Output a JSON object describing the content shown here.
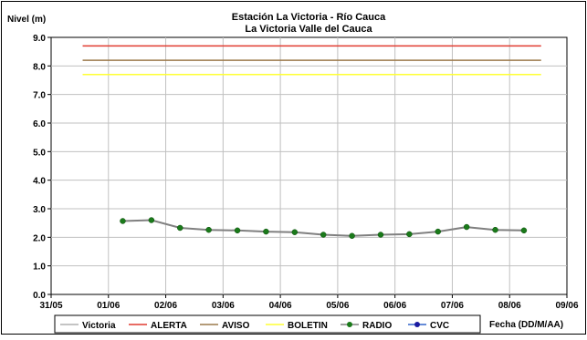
{
  "chart_data": {
    "type": "line",
    "title": "Estación La Victoria - Río Cauca",
    "subtitle": "La Victoria Valle del Cauca",
    "ylabel": "Nivel (m)",
    "xlabel": "Fecha (DD/M/AA)",
    "ylim": [
      0,
      9
    ],
    "y_ticks": [
      "0.0",
      "1.0",
      "2.0",
      "3.0",
      "4.0",
      "5.0",
      "6.0",
      "7.0",
      "8.0",
      "9.0"
    ],
    "x_tick_labels": [
      "31/05",
      "01/06",
      "02/06",
      "03/06",
      "04/06",
      "05/06",
      "06/06",
      "07/06",
      "08/06",
      "09/06"
    ],
    "xlim_days": [
      0,
      9
    ],
    "grid": true,
    "legend_position": "bottom",
    "thresholds": [
      {
        "name": "ALERTA",
        "value": 8.7,
        "color": "#e03c31",
        "from_day": 0.55,
        "to_day": 8.55
      },
      {
        "name": "AVISO",
        "value": 8.2,
        "color": "#9c7a4b",
        "from_day": 0.55,
        "to_day": 8.55
      },
      {
        "name": "BOLETIN",
        "value": 7.7,
        "color": "#ffff33",
        "from_day": 0.55,
        "to_day": 8.55
      }
    ],
    "series": [
      {
        "name": "RADIO",
        "color": "#808080",
        "marker_color": "#1a7a1a",
        "points": [
          {
            "day": 1.25,
            "value": 2.57
          },
          {
            "day": 1.75,
            "value": 2.6
          },
          {
            "day": 2.25,
            "value": 2.33
          },
          {
            "day": 2.75,
            "value": 2.26
          },
          {
            "day": 3.25,
            "value": 2.24
          },
          {
            "day": 3.75,
            "value": 2.2
          },
          {
            "day": 4.25,
            "value": 2.18
          },
          {
            "day": 4.75,
            "value": 2.09
          },
          {
            "day": 5.25,
            "value": 2.05
          },
          {
            "day": 5.75,
            "value": 2.09
          },
          {
            "day": 6.25,
            "value": 2.11
          },
          {
            "day": 6.75,
            "value": 2.2
          },
          {
            "day": 7.25,
            "value": 2.36
          },
          {
            "day": 7.75,
            "value": 2.26
          },
          {
            "day": 8.25,
            "value": 2.24
          }
        ]
      }
    ],
    "legend": [
      {
        "name": "Victoria",
        "color": "#b0b0b0",
        "marker": "none"
      },
      {
        "name": "ALERTA",
        "color": "#e03c31",
        "marker": "none"
      },
      {
        "name": "AVISO",
        "color": "#9c7a4b",
        "marker": "none"
      },
      {
        "name": "BOLETIN",
        "color": "#ffff33",
        "marker": "none"
      },
      {
        "name": "RADIO",
        "color": "#808080",
        "marker": "circle",
        "marker_color": "#1a7a1a"
      },
      {
        "name": "CVC",
        "color": "#3366cc",
        "marker": "circle",
        "marker_color": "#1a1aa0"
      }
    ]
  }
}
